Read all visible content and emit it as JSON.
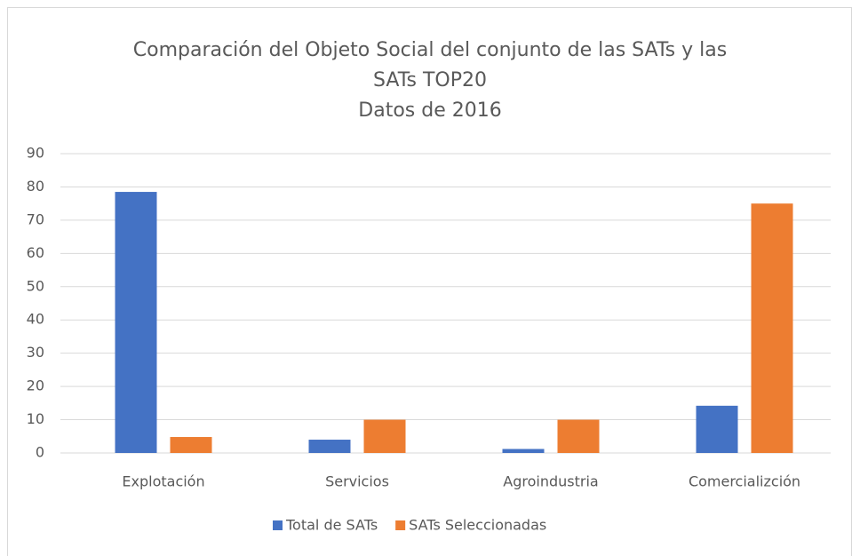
{
  "chart_data": {
    "type": "bar",
    "title": [
      "Comparación del Objeto Social del conjunto de las SATs y las",
      "SATs  TOP20",
      "Datos de 2016"
    ],
    "categories": [
      "Explotación",
      "Servicios",
      "Agroindustria",
      "Comercializción"
    ],
    "series": [
      {
        "name": "Total de SATs",
        "color": "#4472c4",
        "values": [
          78.5,
          4,
          1.2,
          14.2
        ]
      },
      {
        "name": "SATs Seleccionadas",
        "color": "#ed7d31",
        "values": [
          4.8,
          10,
          10,
          75
        ]
      }
    ],
    "ylim": [
      0,
      90
    ],
    "yticks": [
      0,
      10,
      20,
      30,
      40,
      50,
      60,
      70,
      80,
      90
    ],
    "grid": true,
    "legend": "bottom"
  }
}
